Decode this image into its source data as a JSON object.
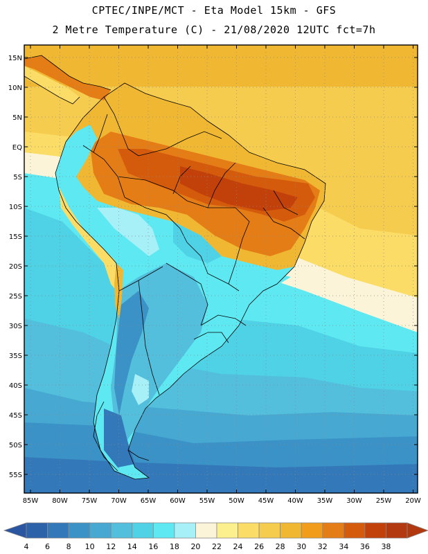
{
  "header": {
    "line1": "CPTEC/INPE/MCT -   Eta Model 15km - GFS",
    "line2": "2 Metre Temperature (C) - 21/08/2020 12UTC fct=7h"
  },
  "axes": {
    "lat_labels": [
      "15N",
      "10N",
      "5N",
      "EQ",
      "5S",
      "10S",
      "15S",
      "20S",
      "25S",
      "30S",
      "35S",
      "40S",
      "45S",
      "50S",
      "55S"
    ],
    "lon_labels": [
      "85W",
      "80W",
      "75W",
      "70W",
      "65W",
      "60W",
      "55W",
      "50W",
      "45W",
      "40W",
      "35W",
      "30W",
      "25W",
      "20W"
    ]
  },
  "colorbar": {
    "labels": [
      "4",
      "6",
      "8",
      "10",
      "12",
      "14",
      "16",
      "18",
      "20",
      "22",
      "24",
      "26",
      "28",
      "30",
      "32",
      "34",
      "36",
      "38"
    ],
    "colors": [
      "#2b62a8",
      "#3379b9",
      "#3b92c6",
      "#47a9d2",
      "#53bfdd",
      "#4fd1e6",
      "#5ee9f2",
      "#a8f0f8",
      "#fbf4d8",
      "#fcef8e",
      "#fadc67",
      "#f6cc4e",
      "#f0b732",
      "#f29c1b",
      "#e57d16",
      "#d45b0c",
      "#c2410a",
      "#b33a10"
    ],
    "under_color": "#2a55a0",
    "over_color": "#b2380f"
  }
}
